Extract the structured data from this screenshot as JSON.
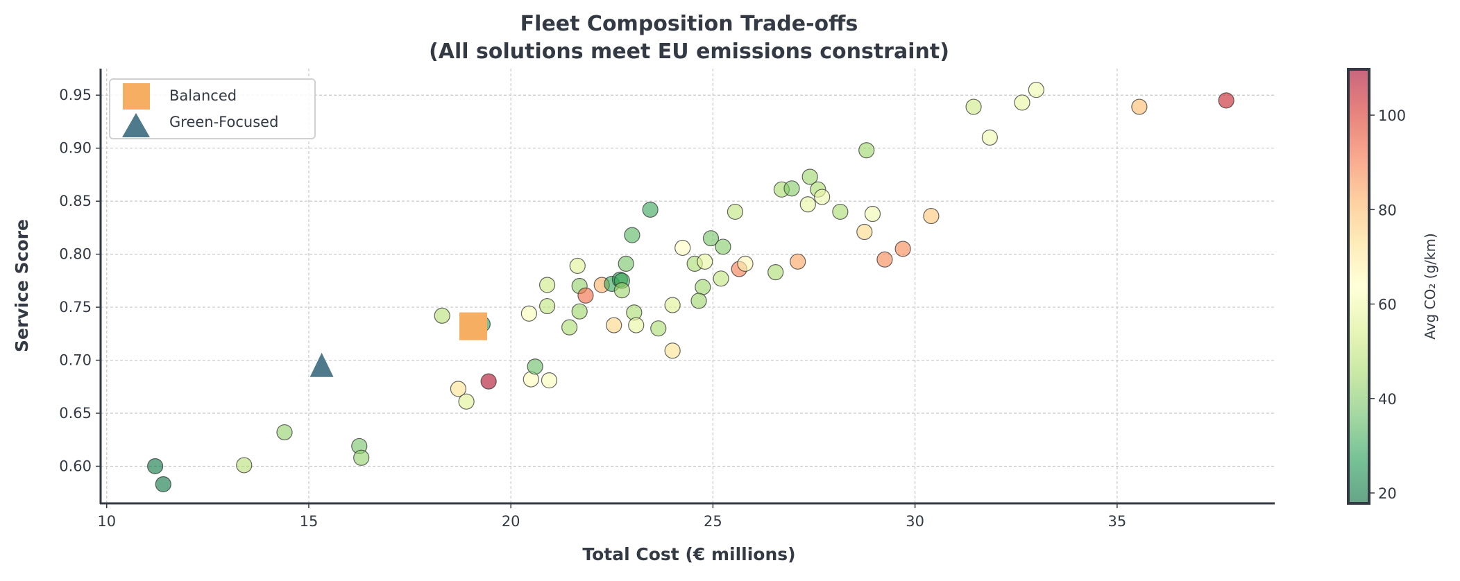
{
  "chart_data": {
    "type": "scatter",
    "title": "Fleet Composition Trade-offs",
    "subtitle": "(All solutions meet EU emissions constraint)",
    "xlabel": "Total Cost (€ millions)",
    "ylabel": "Service Score",
    "xlim": [
      9.85,
      38.9
    ],
    "ylim": [
      0.565,
      0.975
    ],
    "xticks": [
      10,
      15,
      20,
      25,
      30,
      35
    ],
    "xtick_labels": [
      "10",
      "15",
      "20",
      "25",
      "30",
      "35"
    ],
    "yticks": [
      0.6,
      0.65,
      0.7,
      0.75,
      0.8,
      0.85,
      0.9,
      0.95
    ],
    "ytick_labels": [
      "0.60",
      "0.65",
      "0.70",
      "0.75",
      "0.80",
      "0.85",
      "0.90",
      "0.95"
    ],
    "grid": true,
    "colorbar": {
      "label": "Avg CO₂ (g/km)",
      "colormap": "RdYlGn_r",
      "range": [
        17.8,
        109.7
      ],
      "ticks": [
        20,
        40,
        60,
        80,
        100
      ],
      "tick_labels": [
        "20",
        "40",
        "60",
        "80",
        "100"
      ]
    },
    "legend": {
      "placement": "top-left",
      "entries": [
        {
          "label": "Balanced",
          "marker": "square",
          "color": "#f5ae62"
        },
        {
          "label": "Green-Focused",
          "marker": "triangle",
          "color": "#4e7a8c"
        }
      ]
    },
    "highlights": [
      {
        "name": "Balanced",
        "x": 19.07,
        "y": 0.732
      },
      {
        "name": "Green-Focused",
        "x": 15.32,
        "y": 0.694
      }
    ],
    "points": [
      {
        "x": 11.2,
        "y": 0.6,
        "co2": 20
      },
      {
        "x": 11.4,
        "y": 0.583,
        "co2": 20
      },
      {
        "x": 13.4,
        "y": 0.601,
        "co2": 48
      },
      {
        "x": 14.4,
        "y": 0.632,
        "co2": 42
      },
      {
        "x": 16.25,
        "y": 0.619,
        "co2": 38
      },
      {
        "x": 16.3,
        "y": 0.608,
        "co2": 42
      },
      {
        "x": 18.3,
        "y": 0.742,
        "co2": 48
      },
      {
        "x": 19.3,
        "y": 0.734,
        "co2": 28
      },
      {
        "x": 18.7,
        "y": 0.673,
        "co2": 72
      },
      {
        "x": 18.9,
        "y": 0.661,
        "co2": 56
      },
      {
        "x": 19.45,
        "y": 0.68,
        "co2": 108
      },
      {
        "x": 20.45,
        "y": 0.744,
        "co2": 62
      },
      {
        "x": 20.5,
        "y": 0.682,
        "co2": 65
      },
      {
        "x": 20.6,
        "y": 0.694,
        "co2": 36
      },
      {
        "x": 20.95,
        "y": 0.681,
        "co2": 62
      },
      {
        "x": 20.9,
        "y": 0.771,
        "co2": 52
      },
      {
        "x": 20.9,
        "y": 0.751,
        "co2": 50
      },
      {
        "x": 21.45,
        "y": 0.731,
        "co2": 46
      },
      {
        "x": 21.65,
        "y": 0.789,
        "co2": 56
      },
      {
        "x": 21.7,
        "y": 0.77,
        "co2": 42
      },
      {
        "x": 21.7,
        "y": 0.746,
        "co2": 44
      },
      {
        "x": 21.85,
        "y": 0.761,
        "co2": 92
      },
      {
        "x": 22.25,
        "y": 0.771,
        "co2": 82
      },
      {
        "x": 22.55,
        "y": 0.733,
        "co2": 75
      },
      {
        "x": 22.5,
        "y": 0.772,
        "co2": 30
      },
      {
        "x": 22.7,
        "y": 0.776,
        "co2": 28
      },
      {
        "x": 22.75,
        "y": 0.775,
        "co2": 32
      },
      {
        "x": 22.75,
        "y": 0.766,
        "co2": 44
      },
      {
        "x": 22.85,
        "y": 0.791,
        "co2": 38
      },
      {
        "x": 23.0,
        "y": 0.818,
        "co2": 34
      },
      {
        "x": 23.45,
        "y": 0.842,
        "co2": 30
      },
      {
        "x": 23.05,
        "y": 0.745,
        "co2": 46
      },
      {
        "x": 23.1,
        "y": 0.733,
        "co2": 58
      },
      {
        "x": 23.65,
        "y": 0.73,
        "co2": 46
      },
      {
        "x": 24.0,
        "y": 0.752,
        "co2": 56
      },
      {
        "x": 24.0,
        "y": 0.709,
        "co2": 72
      },
      {
        "x": 24.25,
        "y": 0.806,
        "co2": 64
      },
      {
        "x": 24.55,
        "y": 0.791,
        "co2": 46
      },
      {
        "x": 24.8,
        "y": 0.793,
        "co2": 58
      },
      {
        "x": 24.75,
        "y": 0.769,
        "co2": 44
      },
      {
        "x": 24.65,
        "y": 0.756,
        "co2": 44
      },
      {
        "x": 24.95,
        "y": 0.815,
        "co2": 38
      },
      {
        "x": 25.25,
        "y": 0.807,
        "co2": 40
      },
      {
        "x": 25.2,
        "y": 0.777,
        "co2": 50
      },
      {
        "x": 25.65,
        "y": 0.786,
        "co2": 90
      },
      {
        "x": 25.8,
        "y": 0.791,
        "co2": 66
      },
      {
        "x": 25.55,
        "y": 0.84,
        "co2": 50
      },
      {
        "x": 26.55,
        "y": 0.783,
        "co2": 46
      },
      {
        "x": 27.1,
        "y": 0.793,
        "co2": 84
      },
      {
        "x": 26.7,
        "y": 0.861,
        "co2": 46
      },
      {
        "x": 26.95,
        "y": 0.862,
        "co2": 40
      },
      {
        "x": 27.4,
        "y": 0.873,
        "co2": 44
      },
      {
        "x": 27.35,
        "y": 0.847,
        "co2": 58
      },
      {
        "x": 27.6,
        "y": 0.861,
        "co2": 46
      },
      {
        "x": 27.7,
        "y": 0.854,
        "co2": 60
      },
      {
        "x": 28.15,
        "y": 0.84,
        "co2": 46
      },
      {
        "x": 28.75,
        "y": 0.821,
        "co2": 74
      },
      {
        "x": 28.8,
        "y": 0.898,
        "co2": 44
      },
      {
        "x": 28.95,
        "y": 0.838,
        "co2": 60
      },
      {
        "x": 29.25,
        "y": 0.795,
        "co2": 88
      },
      {
        "x": 29.7,
        "y": 0.805,
        "co2": 88
      },
      {
        "x": 30.4,
        "y": 0.836,
        "co2": 78
      },
      {
        "x": 31.45,
        "y": 0.939,
        "co2": 52
      },
      {
        "x": 31.85,
        "y": 0.91,
        "co2": 60
      },
      {
        "x": 32.65,
        "y": 0.943,
        "co2": 58
      },
      {
        "x": 33.0,
        "y": 0.955,
        "co2": 60
      },
      {
        "x": 35.55,
        "y": 0.939,
        "co2": 80
      },
      {
        "x": 37.7,
        "y": 0.945,
        "co2": 104
      }
    ]
  }
}
